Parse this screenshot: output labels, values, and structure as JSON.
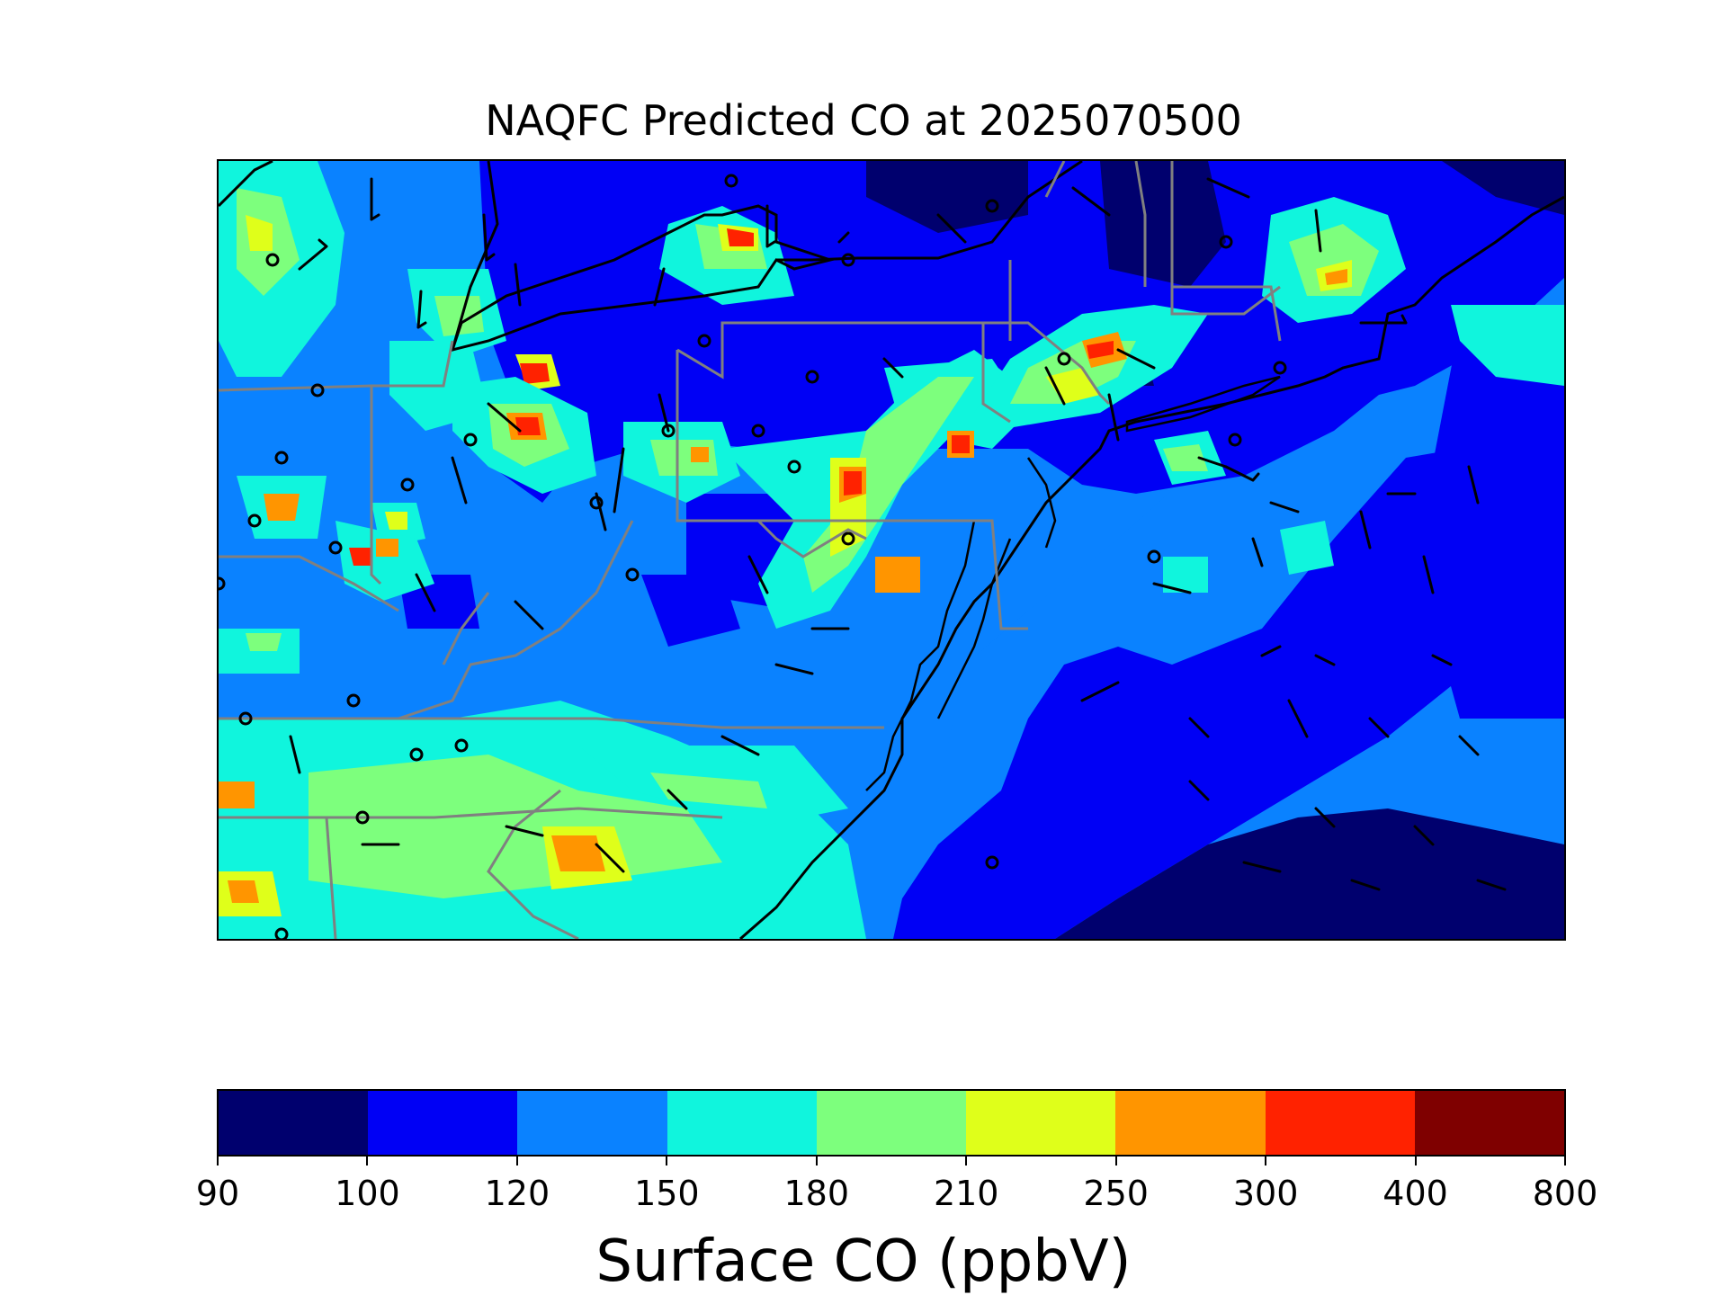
{
  "title": "NAQFC Predicted CO at 2025070500",
  "colorbar": {
    "label": "Surface CO (ppbV)",
    "ticks": [
      "90",
      "100",
      "120",
      "150",
      "180",
      "210",
      "250",
      "300",
      "400",
      "800"
    ],
    "colors": [
      "#00006e",
      "#0000f5",
      "#0a82ff",
      "#10f5dd",
      "#7dff7d",
      "#dfff1a",
      "#ff9500",
      "#ff2200",
      "#7f0000"
    ]
  },
  "map": {
    "legend_colors": {
      "ocean_background": "#0000f5",
      "land_background": "#0a82ff",
      "low": "#00006e",
      "coastline": "#000000",
      "state_borders": "#808080",
      "wind_barbs": "#000000",
      "station_markers": "#000000"
    }
  }
}
